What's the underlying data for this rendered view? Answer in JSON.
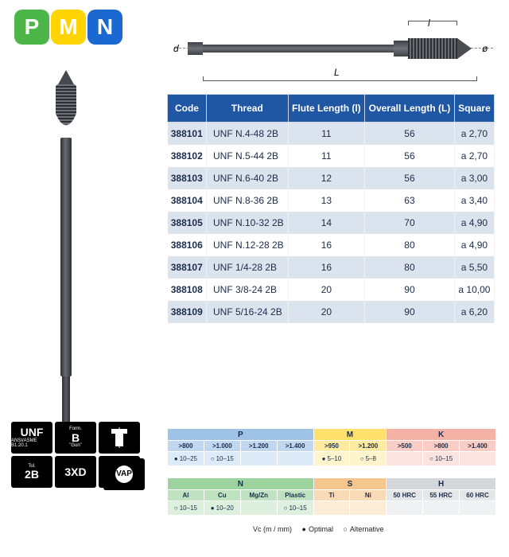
{
  "logo": {
    "p": "P",
    "m": "M",
    "n": "N"
  },
  "diagram": {
    "l": "l",
    "L": "L",
    "d": "d",
    "dia": "ø"
  },
  "spec_table": {
    "columns": [
      "Code",
      "Thread",
      "Flute Length (l)",
      "Overall Length (L)",
      "Square"
    ],
    "rows": [
      [
        "388101",
        "UNF N.4-48 2B",
        "11",
        "56",
        "a 2,70"
      ],
      [
        "388102",
        "UNF N.5-44 2B",
        "11",
        "56",
        "a 2,70"
      ],
      [
        "388103",
        "UNF N.6-40 2B",
        "12",
        "56",
        "a 3,00"
      ],
      [
        "388104",
        "UNF N.8-36 2B",
        "13",
        "63",
        "a 3,40"
      ],
      [
        "388105",
        "UNF N.10-32 2B",
        "14",
        "70",
        "a 4,90"
      ],
      [
        "388106",
        "UNF N.12-28 2B",
        "16",
        "80",
        "a 4,90"
      ],
      [
        "388107",
        "UNF 1/4-28 2B",
        "16",
        "80",
        "a 5,50"
      ],
      [
        "388108",
        "UNF 3/8-24 2B",
        "20",
        "90",
        "a 10,00"
      ],
      [
        "388109",
        "UNF 5/16-24 2B",
        "20",
        "90",
        "a 6,20"
      ]
    ]
  },
  "badges": {
    "unf": {
      "big": "UNF",
      "small": "ANSI/ASME B1.20.1"
    },
    "form": {
      "top": "Form.",
      "big": "B",
      "bot": "\"Gun\""
    },
    "tol": {
      "top": "Tol.",
      "big": "2B"
    },
    "xd": "3XD",
    "r": "R",
    "vap": "VAP"
  },
  "matrix_top": {
    "groups": [
      {
        "label": "P",
        "color": "#9fc2e7",
        "cols": [
          ">800",
          ">1.000",
          ">1.200",
          ">1.400"
        ],
        "vals": [
          {
            "t": "10–25",
            "k": "opt"
          },
          {
            "t": "10–15",
            "k": "alt"
          },
          {
            "t": "",
            "k": ""
          },
          {
            "t": "",
            "k": ""
          }
        ]
      },
      {
        "label": "M",
        "color": "#ffe06b",
        "cols": [
          ">950",
          ">1.200"
        ],
        "vals": [
          {
            "t": "5–10",
            "k": "opt"
          },
          {
            "t": "5–8",
            "k": "alt"
          }
        ]
      },
      {
        "label": "K",
        "color": "#f4b2a6",
        "cols": [
          ">500",
          ">800",
          ">1.400"
        ],
        "vals": [
          {
            "t": "",
            "k": ""
          },
          {
            "t": "10–15",
            "k": "alt"
          },
          {
            "t": "",
            "k": ""
          }
        ]
      }
    ]
  },
  "matrix_bot": {
    "groups": [
      {
        "label": "N",
        "color": "#9cd39f",
        "cols": [
          "Al",
          "Cu",
          "Mg/Zn",
          "Plastic"
        ],
        "vals": [
          {
            "t": "10–15",
            "k": "alt"
          },
          {
            "t": "10–20",
            "k": "opt"
          },
          {
            "t": "",
            "k": ""
          },
          {
            "t": "10–15",
            "k": "alt"
          }
        ]
      },
      {
        "label": "S",
        "color": "#f5c68e",
        "cols": [
          "Ti",
          "Ni"
        ],
        "vals": [
          {
            "t": "",
            "k": ""
          },
          {
            "t": "",
            "k": ""
          }
        ]
      },
      {
        "label": "H",
        "color": "#d5d8db",
        "cols": [
          "50 HRC",
          "55 HRC",
          "60 HRC"
        ],
        "vals": [
          {
            "t": "",
            "k": ""
          },
          {
            "t": "",
            "k": ""
          },
          {
            "t": "",
            "k": ""
          }
        ]
      }
    ]
  },
  "legend": {
    "vc": "Vc (m / mm)",
    "opt": "Optimal",
    "alt": "Alternative"
  }
}
